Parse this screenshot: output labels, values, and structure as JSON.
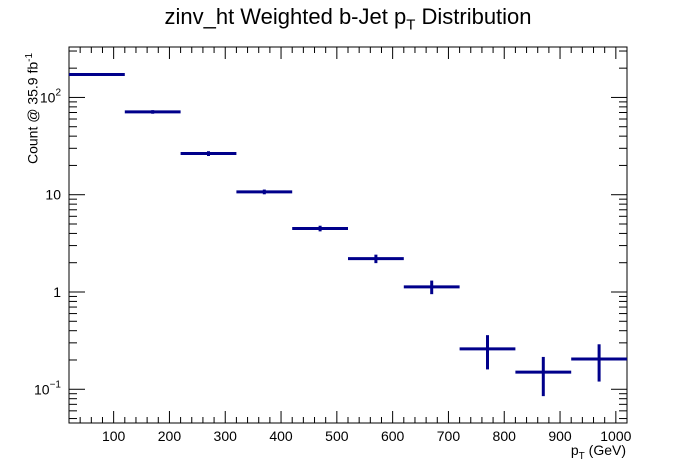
{
  "chart_data": {
    "type": "scatter",
    "title_main": "zinv_ht Weighted b-Jet p",
    "title_sub": "T",
    "title_tail": " Distribution",
    "ylabel_main": "Count @ 35.9 fb",
    "ylabel_sup": "-1",
    "xlabel_main": "p",
    "xlabel_sub": "T",
    "xlabel_tail": " (GeV)",
    "xlim": [
      20,
      1020
    ],
    "ylim": [
      0.045,
      330
    ],
    "yscale": "log",
    "x_ticks": [
      "100",
      "200",
      "300",
      "400",
      "500",
      "600",
      "700",
      "800",
      "900",
      "1000"
    ],
    "y_ticks": [
      {
        "value": 100,
        "label": "10",
        "sup": "2"
      },
      {
        "value": 10,
        "label": "10",
        "sup": ""
      },
      {
        "value": 1,
        "label": "1",
        "sup": ""
      },
      {
        "value": 0.1,
        "label": "10",
        "sup": "−1"
      }
    ],
    "line_color": "#00008b",
    "bins": [
      {
        "x0": 20,
        "x1": 120,
        "y": 172,
        "err": 4
      },
      {
        "x0": 120,
        "x1": 220,
        "y": 71,
        "err": 3
      },
      {
        "x0": 220,
        "x1": 320,
        "y": 26.5,
        "err": 1.5
      },
      {
        "x0": 320,
        "x1": 420,
        "y": 10.7,
        "err": 0.6
      },
      {
        "x0": 420,
        "x1": 520,
        "y": 4.5,
        "err": 0.3
      },
      {
        "x0": 520,
        "x1": 620,
        "y": 2.2,
        "err": 0.22
      },
      {
        "x0": 620,
        "x1": 720,
        "y": 1.13,
        "err": 0.18
      },
      {
        "x0": 720,
        "x1": 820,
        "y": 0.26,
        "err": 0.1
      },
      {
        "x0": 820,
        "x1": 920,
        "y": 0.15,
        "err": 0.065
      },
      {
        "x0": 920,
        "x1": 1020,
        "y": 0.205,
        "err": 0.085
      }
    ]
  }
}
